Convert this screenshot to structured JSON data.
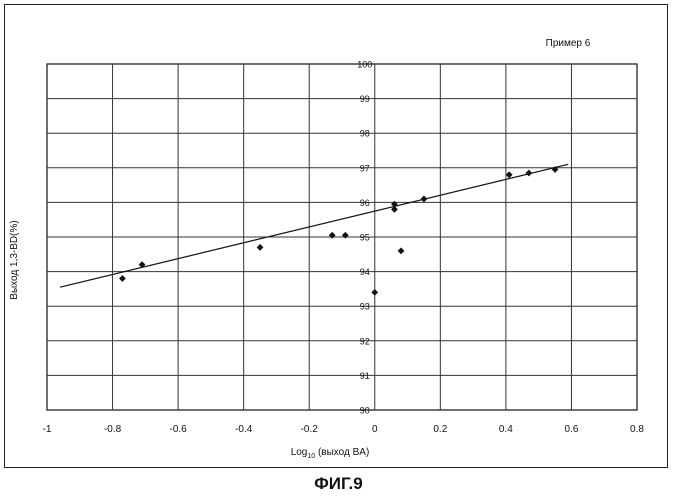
{
  "figure_label": "ФИГ.9",
  "chart_data": {
    "type": "scatter",
    "title": "Пример 6",
    "xlabel": "Log10  (выход BA)",
    "xlabel_base": "Log",
    "xlabel_sub": "10",
    "xlabel_rest": "  (выход BA)",
    "ylabel": "Выход 1,3-BD(%)",
    "xlim": [
      -1,
      0.8
    ],
    "ylim": [
      90,
      100
    ],
    "x_ticks": [
      "-1",
      "-0.8",
      "-0.6",
      "-0.4",
      "-0.2",
      "0",
      "0.2",
      "0.4",
      "0.6",
      "0.8"
    ],
    "y_ticks": [
      "90",
      "91",
      "92",
      "93",
      "94",
      "95",
      "96",
      "97",
      "98",
      "99",
      "100"
    ],
    "x_tick_values": [
      -1,
      -0.8,
      -0.6,
      -0.4,
      -0.2,
      0,
      0.2,
      0.4,
      0.6,
      0.8
    ],
    "y_tick_values": [
      90,
      91,
      92,
      93,
      94,
      95,
      96,
      97,
      98,
      99,
      100
    ],
    "grid": true,
    "points": [
      {
        "x": -0.77,
        "y": 93.8
      },
      {
        "x": -0.71,
        "y": 94.2
      },
      {
        "x": -0.35,
        "y": 94.7
      },
      {
        "x": -0.13,
        "y": 95.05
      },
      {
        "x": -0.09,
        "y": 95.05
      },
      {
        "x": 0.0,
        "y": 93.4
      },
      {
        "x": 0.06,
        "y": 95.95
      },
      {
        "x": 0.06,
        "y": 95.8
      },
      {
        "x": 0.08,
        "y": 94.6
      },
      {
        "x": 0.15,
        "y": 96.1
      },
      {
        "x": 0.41,
        "y": 96.8
      },
      {
        "x": 0.47,
        "y": 96.85
      },
      {
        "x": 0.55,
        "y": 96.95
      }
    ],
    "trendline": {
      "x": [
        -0.96,
        0.59
      ],
      "y": [
        93.55,
        97.1
      ]
    }
  }
}
